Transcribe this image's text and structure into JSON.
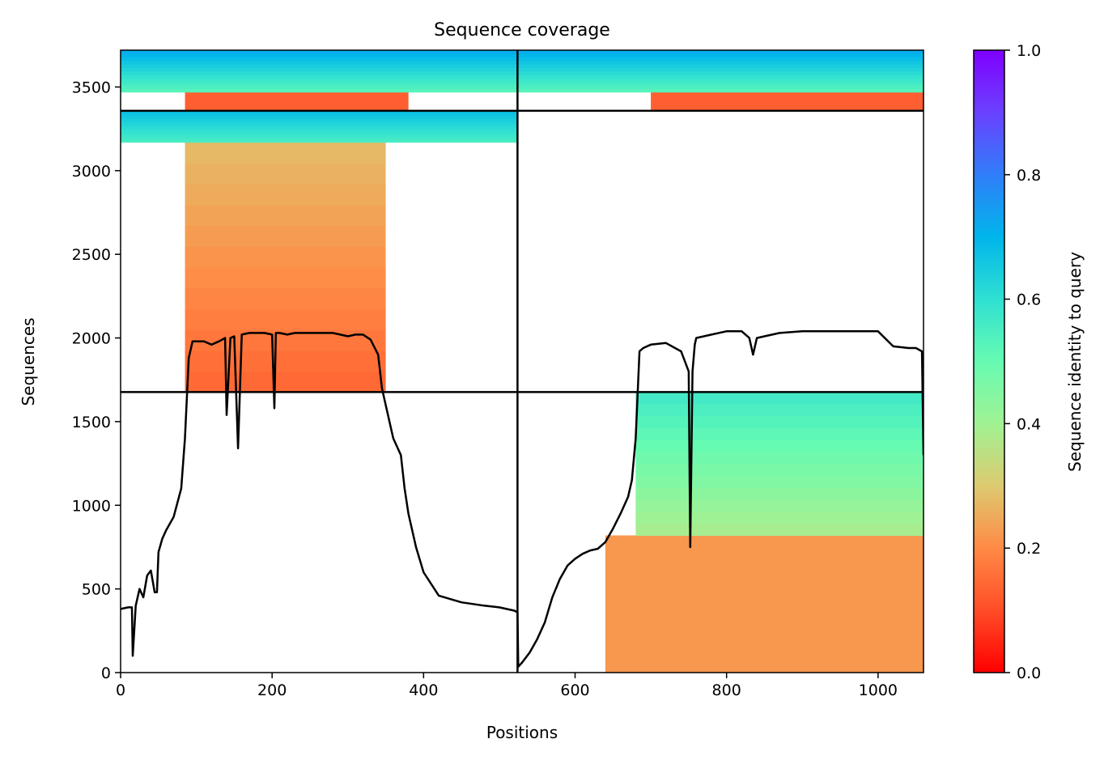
{
  "chart_data": {
    "type": "heatmap",
    "title": "Sequence coverage",
    "xlabel": "Positions",
    "ylabel": "Sequences",
    "xlim": [
      0,
      1060
    ],
    "ylim": [
      0,
      3720
    ],
    "xticks": [
      0,
      200,
      400,
      600,
      800,
      1000
    ],
    "yticks": [
      0,
      500,
      1000,
      1500,
      2000,
      2500,
      3000,
      3500
    ],
    "grid": false,
    "chain_boundary_x": 524,
    "group_boundaries_y": [
      1677,
      3358
    ],
    "colorbar": {
      "label": "Sequence identity to query",
      "colormap": "rainbow_r",
      "range": [
        0,
        1
      ],
      "ticks": [
        0.0,
        0.2,
        0.4,
        0.6,
        0.8,
        1.0
      ],
      "tick_labels": [
        "0.0",
        "0.2",
        "0.4",
        "0.6",
        "0.8",
        "1.0"
      ]
    },
    "regions": [
      {
        "x0": 640,
        "x1": 1060,
        "y0": 0,
        "y1": 820,
        "identity": 0.22
      },
      {
        "x0": 680,
        "x1": 1060,
        "y0": 820,
        "y1": 1677,
        "identity_bottom": 0.38,
        "identity_top": 0.57
      },
      {
        "x0": 85,
        "x1": 350,
        "y0": 1677,
        "y1": 3170,
        "identity_bottom": 0.14,
        "identity_top": 0.28
      },
      {
        "x0": 0,
        "x1": 524,
        "y0": 3170,
        "y1": 3358,
        "identity_bottom": 0.55,
        "identity_top": 0.68
      },
      {
        "x0": 85,
        "x1": 380,
        "y0": 3358,
        "y1": 3470,
        "identity": 0.13
      },
      {
        "x0": 0,
        "x1": 524,
        "y0": 3470,
        "y1": 3720,
        "identity_bottom": 0.52,
        "identity_top": 0.72
      },
      {
        "x0": 700,
        "x1": 1060,
        "y0": 3358,
        "y1": 3470,
        "identity": 0.13
      },
      {
        "x0": 524,
        "x1": 1060,
        "y0": 3470,
        "y1": 3720,
        "identity_bottom": 0.52,
        "identity_top": 0.72
      }
    ],
    "series": [
      {
        "type": "line",
        "color": "#000000",
        "x": [
          0,
          10,
          15,
          16,
          20,
          25,
          30,
          35,
          40,
          45,
          48,
          50,
          55,
          60,
          70,
          80,
          85,
          90,
          95,
          100,
          110,
          120,
          130,
          138,
          140,
          145,
          150,
          155,
          160,
          170,
          180,
          190,
          200,
          203,
          205,
          210,
          220,
          230,
          240,
          250,
          260,
          270,
          280,
          290,
          300,
          310,
          320,
          330,
          340,
          345,
          350,
          360,
          370,
          375,
          380,
          390,
          400,
          420,
          450,
          480,
          500,
          520,
          524,
          525,
          530,
          540,
          550,
          560,
          570,
          580,
          590,
          600,
          610,
          620,
          630,
          640,
          650,
          660,
          670,
          675,
          680,
          685,
          690,
          700,
          720,
          740,
          750,
          752,
          755,
          758,
          760,
          770,
          780,
          800,
          820,
          830,
          835,
          840,
          850,
          870,
          900,
          920,
          950,
          1000,
          1020,
          1040,
          1050,
          1058,
          1060
        ],
        "y": [
          380,
          390,
          390,
          100,
          400,
          500,
          450,
          580,
          610,
          480,
          480,
          720,
          800,
          850,
          930,
          1100,
          1400,
          1880,
          1980,
          1980,
          1980,
          1960,
          1980,
          2000,
          1540,
          2000,
          2010,
          1340,
          2020,
          2030,
          2030,
          2030,
          2020,
          1580,
          2030,
          2030,
          2020,
          2030,
          2030,
          2030,
          2030,
          2030,
          2030,
          2020,
          2010,
          2020,
          2020,
          1990,
          1900,
          1700,
          1600,
          1400,
          1300,
          1100,
          950,
          750,
          600,
          460,
          420,
          400,
          390,
          370,
          360,
          35,
          60,
          120,
          200,
          300,
          450,
          560,
          640,
          680,
          710,
          730,
          740,
          780,
          860,
          950,
          1050,
          1150,
          1400,
          1920,
          1940,
          1960,
          1970,
          1920,
          1800,
          750,
          1800,
          1960,
          2000,
          2010,
          2020,
          2040,
          2040,
          2000,
          1900,
          2000,
          2010,
          2030,
          2040,
          2040,
          2040,
          2040,
          1950,
          1940,
          1940,
          1920,
          1300
        ]
      }
    ]
  }
}
